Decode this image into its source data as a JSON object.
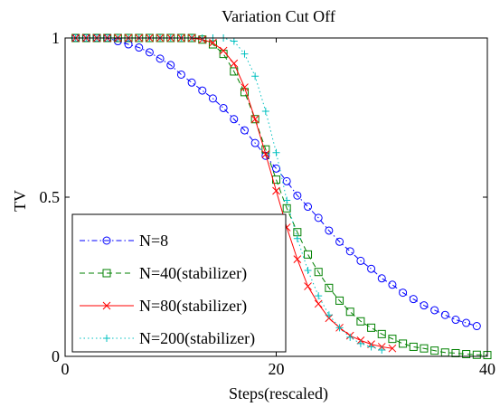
{
  "chart_data": {
    "type": "line",
    "title": "Variation Cut Off",
    "xlabel": "Steps(rescaled)",
    "ylabel": "TV",
    "xlim": [
      0,
      40
    ],
    "ylim": [
      0,
      1
    ],
    "xticks": [
      0,
      20,
      40
    ],
    "yticks": [
      0,
      0.5,
      1
    ],
    "xtick_labels": [
      "0",
      "20",
      "40"
    ],
    "ytick_labels": [
      "0",
      "0.5",
      "1"
    ],
    "grid": false,
    "legend_position": "bottom-left",
    "series": [
      {
        "name": "N=8",
        "color": "#0000ff",
        "line_style": "dash-dot",
        "marker": "circle",
        "x": [
          1,
          2,
          3,
          4,
          5,
          6,
          7,
          8,
          9,
          10,
          11,
          12,
          13,
          14,
          15,
          16,
          17,
          18,
          19,
          20,
          21,
          22,
          23,
          24,
          25,
          26,
          27,
          28,
          29,
          30,
          31,
          32,
          33,
          34,
          35,
          36,
          37,
          38,
          39
        ],
        "y": [
          1,
          1,
          1,
          1,
          0.99,
          0.98,
          0.97,
          0.955,
          0.935,
          0.915,
          0.885,
          0.86,
          0.835,
          0.81,
          0.78,
          0.745,
          0.71,
          0.67,
          0.63,
          0.59,
          0.55,
          0.505,
          0.47,
          0.435,
          0.395,
          0.36,
          0.33,
          0.3,
          0.275,
          0.245,
          0.225,
          0.2,
          0.18,
          0.16,
          0.145,
          0.13,
          0.115,
          0.105,
          0.095
        ]
      },
      {
        "name": "N=40(stabilizer)",
        "color": "#008000",
        "line_style": "dashed",
        "marker": "square",
        "x": [
          1,
          2,
          3,
          4,
          5,
          6,
          7,
          8,
          9,
          10,
          11,
          12,
          13,
          14,
          15,
          16,
          17,
          18,
          19,
          20,
          21,
          22,
          23,
          24,
          25,
          26,
          27,
          28,
          29,
          30,
          31,
          32,
          33,
          34,
          35,
          36,
          37,
          38,
          39,
          40
        ],
        "y": [
          1,
          1,
          1,
          1,
          1,
          1,
          1,
          1,
          1,
          1,
          1,
          1,
          0.995,
          0.98,
          0.95,
          0.895,
          0.83,
          0.745,
          0.65,
          0.555,
          0.465,
          0.39,
          0.32,
          0.265,
          0.215,
          0.175,
          0.14,
          0.11,
          0.09,
          0.07,
          0.055,
          0.04,
          0.03,
          0.025,
          0.018,
          0.012,
          0.01,
          0.007,
          0.005,
          0.004
        ]
      },
      {
        "name": "N=80(stabilizer)",
        "color": "#ff0000",
        "line_style": "solid",
        "marker": "x",
        "x": [
          1,
          2,
          3,
          4,
          5,
          6,
          7,
          8,
          9,
          10,
          11,
          12,
          13,
          14,
          15,
          16,
          17,
          18,
          19,
          20,
          21,
          22,
          23,
          24,
          25,
          26,
          27,
          28,
          29,
          30,
          31
        ],
        "y": [
          1,
          1,
          1,
          1,
          1,
          1,
          1,
          1,
          1,
          1,
          1,
          1,
          0.995,
          0.985,
          0.96,
          0.92,
          0.845,
          0.745,
          0.635,
          0.52,
          0.405,
          0.305,
          0.22,
          0.165,
          0.12,
          0.09,
          0.065,
          0.05,
          0.038,
          0.03,
          0.025
        ]
      },
      {
        "name": "N=200(stabilizer)",
        "color": "#00c0c0",
        "line_style": "dotted",
        "marker": "plus",
        "x": [
          1,
          2,
          3,
          4,
          5,
          6,
          7,
          8,
          9,
          10,
          11,
          12,
          13,
          14,
          15,
          16,
          17,
          18,
          19,
          20,
          21,
          22,
          23,
          24,
          25,
          26,
          27,
          28,
          29,
          30
        ],
        "y": [
          1,
          1,
          1,
          1,
          1,
          1,
          1,
          1,
          1,
          1,
          1,
          1,
          1,
          1,
          1,
          0.99,
          0.95,
          0.88,
          0.77,
          0.64,
          0.49,
          0.37,
          0.27,
          0.19,
          0.13,
          0.09,
          0.06,
          0.04,
          0.03,
          0.02
        ]
      }
    ]
  }
}
